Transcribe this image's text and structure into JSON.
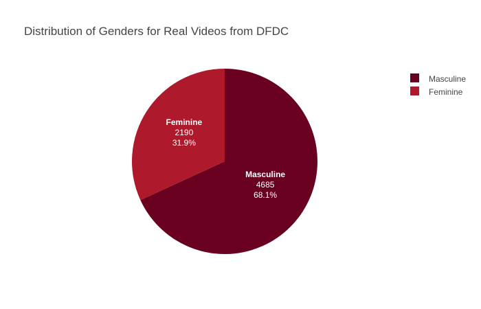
{
  "chart_data": {
    "type": "pie",
    "title": "Distribution of Genders for Real Videos from DFDC",
    "slices": [
      {
        "label": "Masculine",
        "value": 4685,
        "percent": "68.1%",
        "color": "#6a0020"
      },
      {
        "label": "Feminine",
        "value": 2190,
        "percent": "31.9%",
        "color": "#ae1a2c"
      }
    ],
    "legend": {
      "placement": "top-right",
      "entries": [
        "Masculine",
        "Feminine"
      ]
    },
    "start_angle": "12 o'clock",
    "direction": "clockwise"
  }
}
